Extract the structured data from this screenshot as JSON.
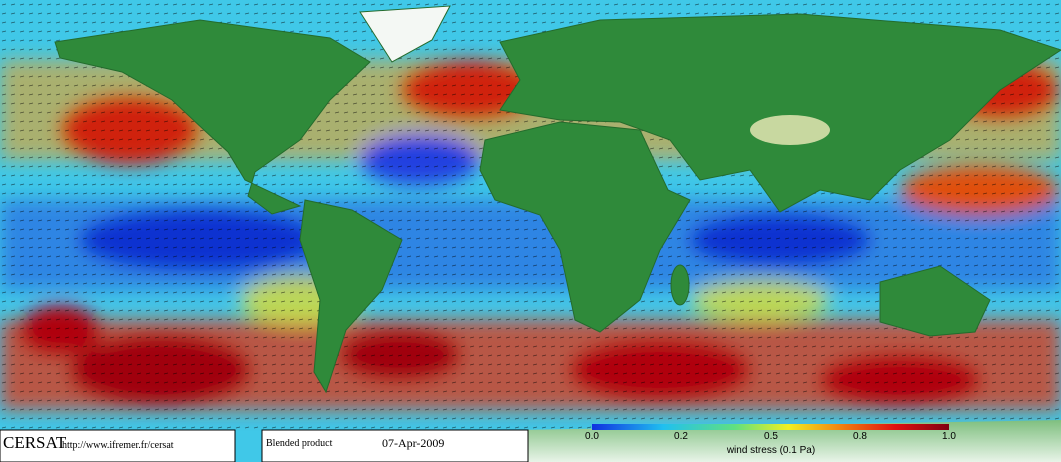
{
  "footer": {
    "logo": "CERSAT",
    "url": "http://www.ifremer.fr/cersat",
    "product": "Blended product",
    "date": "07-Apr-2009"
  },
  "colorbar": {
    "label": "wind stress (0.1 Pa)",
    "tick_labels": [
      "0.0",
      "0.2",
      "0.5",
      "0.8",
      "1.0"
    ]
  }
}
